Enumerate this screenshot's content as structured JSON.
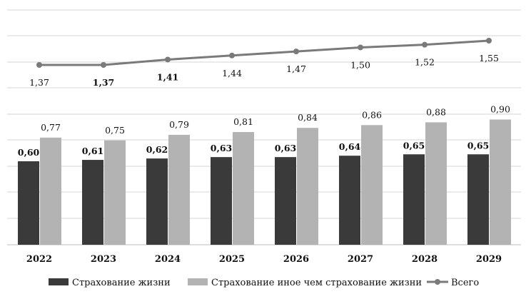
{
  "chart_data": {
    "type": "bar",
    "categories": [
      "2022",
      "2023",
      "2024",
      "2025",
      "2026",
      "2027",
      "2028",
      "2029"
    ],
    "series": [
      {
        "name": "Страхование жизни",
        "type": "bar",
        "color": "#3a3a3a",
        "values": [
          0.6,
          0.61,
          0.62,
          0.63,
          0.63,
          0.64,
          0.65,
          0.65
        ],
        "labels": [
          "0,60",
          "0,61",
          "0,62",
          "0,63",
          "0,63",
          "0,64",
          "0,65",
          "0,65"
        ]
      },
      {
        "name": "Страхование иное чем страхование жизни",
        "type": "bar",
        "color": "#b3b3b3",
        "values": [
          0.77,
          0.75,
          0.79,
          0.81,
          0.84,
          0.86,
          0.88,
          0.9
        ],
        "labels": [
          "0,77",
          "0,75",
          "0,79",
          "0,81",
          "0,84",
          "0,86",
          "0,88",
          "0,90"
        ]
      },
      {
        "name": "Всего",
        "type": "line",
        "color": "#7a7a7a",
        "values": [
          1.37,
          1.37,
          1.41,
          1.44,
          1.47,
          1.5,
          1.52,
          1.55
        ],
        "labels": [
          "1,37",
          "1,37",
          "1,41",
          "1,44",
          "1,47",
          "1,50",
          "1,52",
          "1,55"
        ]
      }
    ],
    "ylim": [
      0,
      1.8
    ],
    "grid": true,
    "legend": "bottom"
  }
}
